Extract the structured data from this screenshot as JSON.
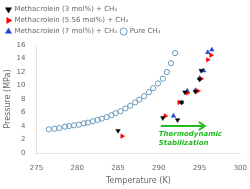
{
  "chart_data": {
    "type": "scatter",
    "xlabel": "Temperature (K)",
    "ylabel": "Pressure (MPa)",
    "xlim": [
      275,
      300
    ],
    "ylim": [
      0,
      16
    ],
    "xticks": [
      275,
      280,
      285,
      290,
      295,
      300
    ],
    "yticks": [
      0,
      2,
      4,
      6,
      8,
      10,
      12,
      14,
      16
    ],
    "legend": "upper left",
    "grid": false,
    "annotations": [
      "Thermodynamic\nStabilization"
    ],
    "series": [
      {
        "name": "Methacrolein (3 mol%) + CH₄",
        "color": "black",
        "marker": "triangle_down",
        "x": [
          285.0,
          290.5,
          292.3,
          292.8,
          293.2,
          294.5,
          295.0,
          295.2
        ],
        "values": [
          3.3,
          5.2,
          4.9,
          7.5,
          9.0,
          9.1,
          10.9,
          12.2
        ]
      },
      {
        "name": "Methacrolein (5.56 mol%) + CH₄",
        "color": "red",
        "marker": "triangle_right",
        "x": [
          285.5,
          290.8,
          292.5,
          293.5,
          294.8,
          295.2,
          296.0,
          296.4
        ],
        "values": [
          2.5,
          5.5,
          7.5,
          8.9,
          9.2,
          11.0,
          13.8,
          14.5
        ]
      },
      {
        "name": "Methacrolein (7 mol%) + CH₄",
        "color": "#2244cc",
        "marker": "triangle_up",
        "x": [
          291.8,
          292.8,
          293.5,
          294.5,
          295.0,
          295.5,
          296.0,
          296.5
        ],
        "values": [
          5.5,
          7.5,
          9.2,
          9.3,
          11.1,
          12.2,
          14.9,
          15.3
        ]
      },
      {
        "name": "Pure CH₄",
        "color": "#6699bb",
        "marker": "circle_open",
        "x": [
          276.5,
          277.2,
          277.8,
          278.5,
          279.0,
          279.6,
          280.2,
          280.8,
          281.3,
          281.9,
          282.5,
          283.0,
          283.6,
          284.2,
          284.7,
          285.3,
          285.9,
          286.5,
          287.1,
          287.6,
          288.2,
          288.8,
          289.3,
          289.9,
          290.5,
          291.0,
          291.5,
          292.0
        ],
        "values": [
          3.5,
          3.6,
          3.7,
          3.9,
          4.0,
          4.1,
          4.2,
          4.4,
          4.5,
          4.7,
          4.9,
          5.1,
          5.3,
          5.6,
          5.9,
          6.2,
          6.6,
          7.0,
          7.5,
          7.9,
          8.4,
          9.0,
          9.6,
          10.3,
          11.0,
          12.0,
          13.3,
          14.8
        ]
      }
    ]
  }
}
